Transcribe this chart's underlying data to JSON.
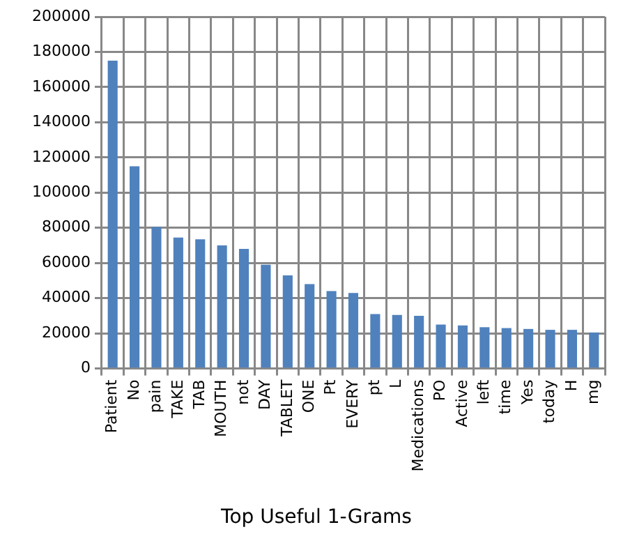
{
  "chart_data": {
    "type": "bar",
    "title": "Top Useful 1-Grams",
    "categories": [
      "Patient",
      "No",
      "pain",
      "TAKE",
      "TAB",
      "MOUTH",
      "not",
      "DAY",
      "TABLET",
      "ONE",
      "Pt",
      "EVERY",
      "pt",
      "L",
      "Medications",
      "PO",
      "Active",
      "left",
      "time",
      "Yes",
      "today",
      "H",
      "mg"
    ],
    "values": [
      175000,
      115000,
      80500,
      74500,
      73500,
      70000,
      68000,
      59000,
      53000,
      48000,
      44000,
      43000,
      31000,
      30500,
      30000,
      25000,
      24500,
      23500,
      23000,
      22500,
      22000,
      22000,
      20500
    ],
    "color": "#4f81bd",
    "ylim": [
      0,
      200000
    ],
    "yticks": [
      0,
      20000,
      40000,
      60000,
      80000,
      100000,
      120000,
      140000,
      160000,
      180000,
      200000
    ],
    "grid": true
  }
}
